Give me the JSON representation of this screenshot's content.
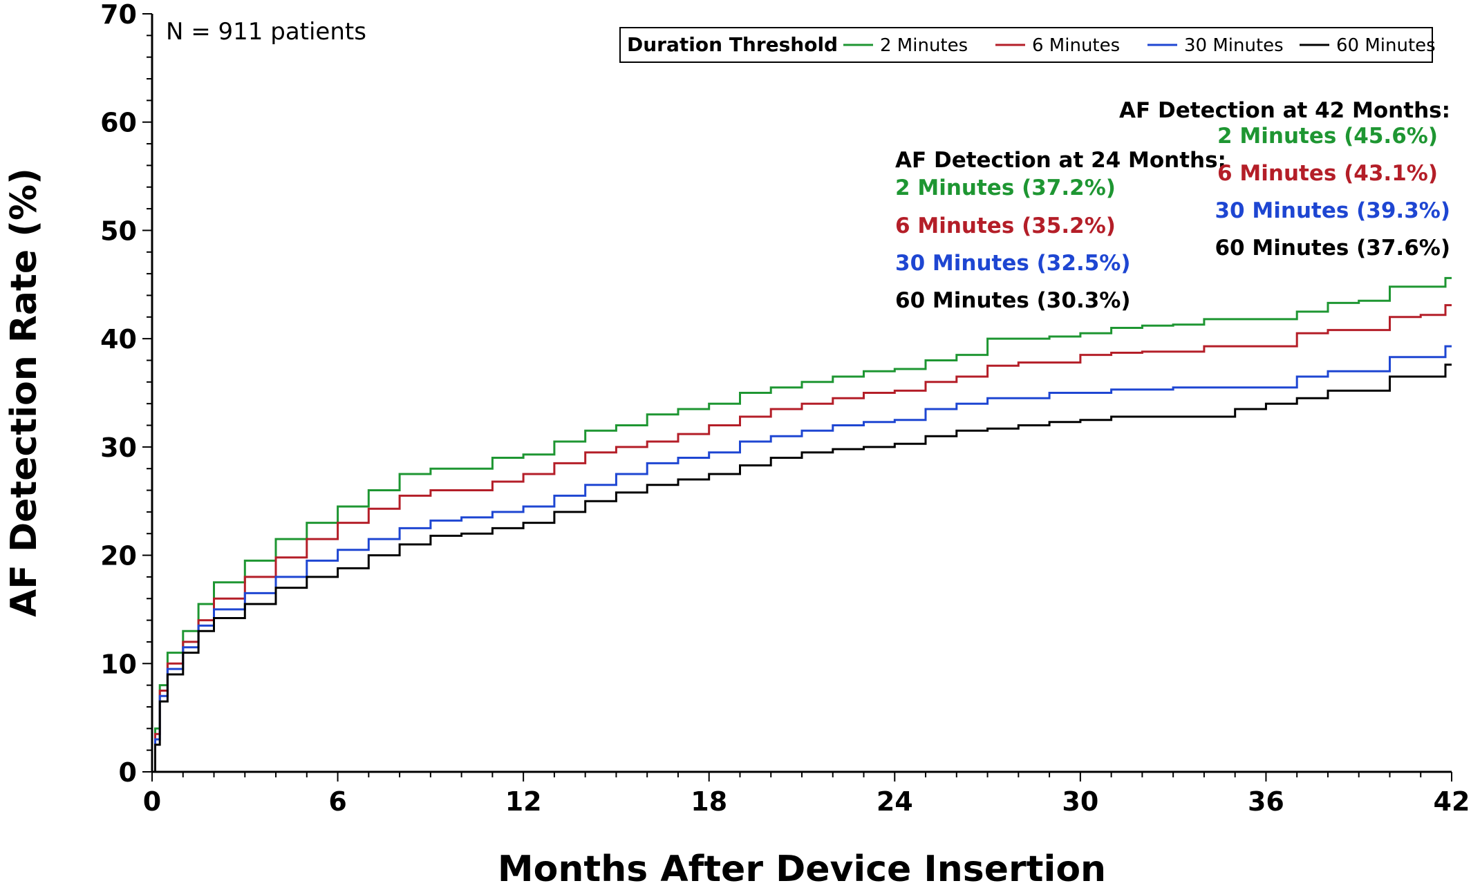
{
  "chart_data": {
    "type": "line",
    "step": true,
    "xlabel": "Months After Device Insertion",
    "ylabel": "AF Detection Rate (%)",
    "xlim": [
      0,
      42
    ],
    "ylim": [
      0,
      70
    ],
    "xticks": [
      0,
      6,
      12,
      18,
      24,
      30,
      36,
      42
    ],
    "yticks": [
      0,
      10,
      20,
      30,
      40,
      50,
      60,
      70
    ],
    "grid": false,
    "note": "N = 911 patients",
    "legend": {
      "title": "Duration Threshold",
      "position": "top-right",
      "entries": [
        "2 Minutes",
        "6 Minutes",
        "30 Minutes",
        "60 Minutes"
      ]
    },
    "annotations": [
      {
        "title": "AF Detection at 24 Months:",
        "lines": [
          {
            "text": "2 Minutes (37.2%)",
            "color": "#1e9632"
          },
          {
            "text": "6 Minutes (35.2%)",
            "color": "#b41e28"
          },
          {
            "text": "30 Minutes (32.5%)",
            "color": "#1e46d2"
          },
          {
            "text": "60 Minutes (30.3%)",
            "color": "#000000"
          }
        ]
      },
      {
        "title": "AF Detection at 42 Months:",
        "lines": [
          {
            "text": "2 Minutes (45.6%)",
            "color": "#1e9632"
          },
          {
            "text": "6 Minutes (43.1%)",
            "color": "#b41e28"
          },
          {
            "text": "30 Minutes (39.3%)",
            "color": "#1e46d2"
          },
          {
            "text": "60 Minutes (37.6%)",
            "color": "#000000"
          }
        ]
      }
    ],
    "x": [
      0,
      0.1,
      0.25,
      0.5,
      1,
      1.5,
      2,
      3,
      4,
      5,
      6,
      7,
      8,
      9,
      10,
      11,
      12,
      13,
      14,
      15,
      16,
      17,
      18,
      19,
      20,
      21,
      22,
      23,
      24,
      25,
      26,
      27,
      28,
      29,
      30,
      31,
      32,
      33,
      34,
      35,
      36,
      37,
      38,
      39,
      40,
      41,
      41.8,
      42
    ],
    "series": [
      {
        "name": "2 Minutes",
        "color": "#1e9632",
        "values": [
          0,
          4,
          8,
          11,
          13,
          15.5,
          17.5,
          19.5,
          21.5,
          23,
          24.5,
          26,
          27.5,
          28,
          28,
          29,
          29.3,
          30.5,
          31.5,
          32,
          33,
          33.5,
          34,
          35,
          35.5,
          36,
          36.5,
          37,
          37.2,
          38,
          38.5,
          40,
          40,
          40.2,
          40.5,
          41,
          41.2,
          41.3,
          41.8,
          41.8,
          41.8,
          42.5,
          43.3,
          43.5,
          44.8,
          44.8,
          45.6,
          45.6
        ]
      },
      {
        "name": "6 Minutes",
        "color": "#b41e28",
        "values": [
          0,
          3.5,
          7.5,
          10,
          12,
          14,
          16,
          18,
          19.8,
          21.5,
          23,
          24.3,
          25.5,
          26,
          26,
          26.8,
          27.5,
          28.5,
          29.5,
          30,
          30.5,
          31.2,
          32,
          32.8,
          33.5,
          34,
          34.5,
          35,
          35.2,
          36,
          36.5,
          37.5,
          37.8,
          37.8,
          38.5,
          38.7,
          38.8,
          38.8,
          39.3,
          39.3,
          39.3,
          40.5,
          40.8,
          40.8,
          42,
          42.2,
          43.1,
          43.1
        ]
      },
      {
        "name": "30 Minutes",
        "color": "#1e46d2",
        "values": [
          0,
          3,
          7,
          9.5,
          11.5,
          13.5,
          15,
          16.5,
          18,
          19.5,
          20.5,
          21.5,
          22.5,
          23.2,
          23.5,
          24,
          24.5,
          25.5,
          26.5,
          27.5,
          28.5,
          29,
          29.5,
          30.5,
          31,
          31.5,
          32,
          32.3,
          32.5,
          33.5,
          34,
          34.5,
          34.5,
          35,
          35,
          35.3,
          35.3,
          35.5,
          35.5,
          35.5,
          35.5,
          36.5,
          37,
          37,
          38.3,
          38.3,
          39.3,
          39.3
        ]
      },
      {
        "name": "60 Minutes",
        "color": "#000000",
        "values": [
          0,
          2.5,
          6.5,
          9,
          11,
          13,
          14.2,
          15.5,
          17,
          18,
          18.8,
          20,
          21,
          21.8,
          22,
          22.5,
          23,
          24,
          25,
          25.8,
          26.5,
          27,
          27.5,
          28.3,
          29,
          29.5,
          29.8,
          30,
          30.3,
          31,
          31.5,
          31.7,
          32,
          32.3,
          32.5,
          32.8,
          32.8,
          32.8,
          32.8,
          33.5,
          34,
          34.5,
          35.2,
          35.2,
          36.5,
          36.5,
          37.6,
          37.6
        ]
      }
    ]
  }
}
